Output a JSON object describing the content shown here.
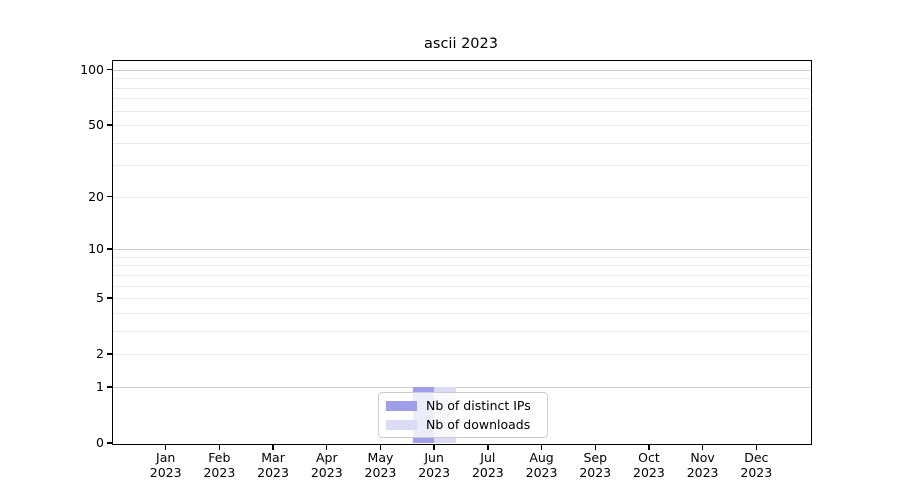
{
  "chart_data": {
    "type": "bar",
    "title": "ascii 2023",
    "categories": [
      "Jan",
      "Feb",
      "Mar",
      "Apr",
      "May",
      "Jun",
      "Jul",
      "Aug",
      "Sep",
      "Oct",
      "Nov",
      "Dec"
    ],
    "category_year": "2023",
    "series": [
      {
        "name": "Nb of distinct IPs",
        "color": "#9e9eeb",
        "values": [
          0,
          0,
          0,
          0,
          0,
          1,
          0,
          0,
          0,
          0,
          0,
          0
        ]
      },
      {
        "name": "Nb of downloads",
        "color": "#dbdbf5",
        "values": [
          0,
          0,
          0,
          0,
          0,
          1,
          0,
          0,
          0,
          0,
          0,
          0
        ]
      }
    ],
    "yticks": [
      0,
      1,
      2,
      5,
      10,
      20,
      50,
      100
    ],
    "major_gridlines": [
      1,
      10,
      100
    ],
    "ylim": [
      0,
      113
    ],
    "scale": "log1p",
    "xlabel": "",
    "ylabel": "",
    "grid": "both",
    "legend_position": "lower center",
    "colors": {
      "axis": "#000000",
      "grid_minor": "#ebebeb",
      "grid_major": "#cccccc",
      "legend_border": "#cccccc",
      "text": "#000000",
      "background": "#ffffff"
    }
  }
}
